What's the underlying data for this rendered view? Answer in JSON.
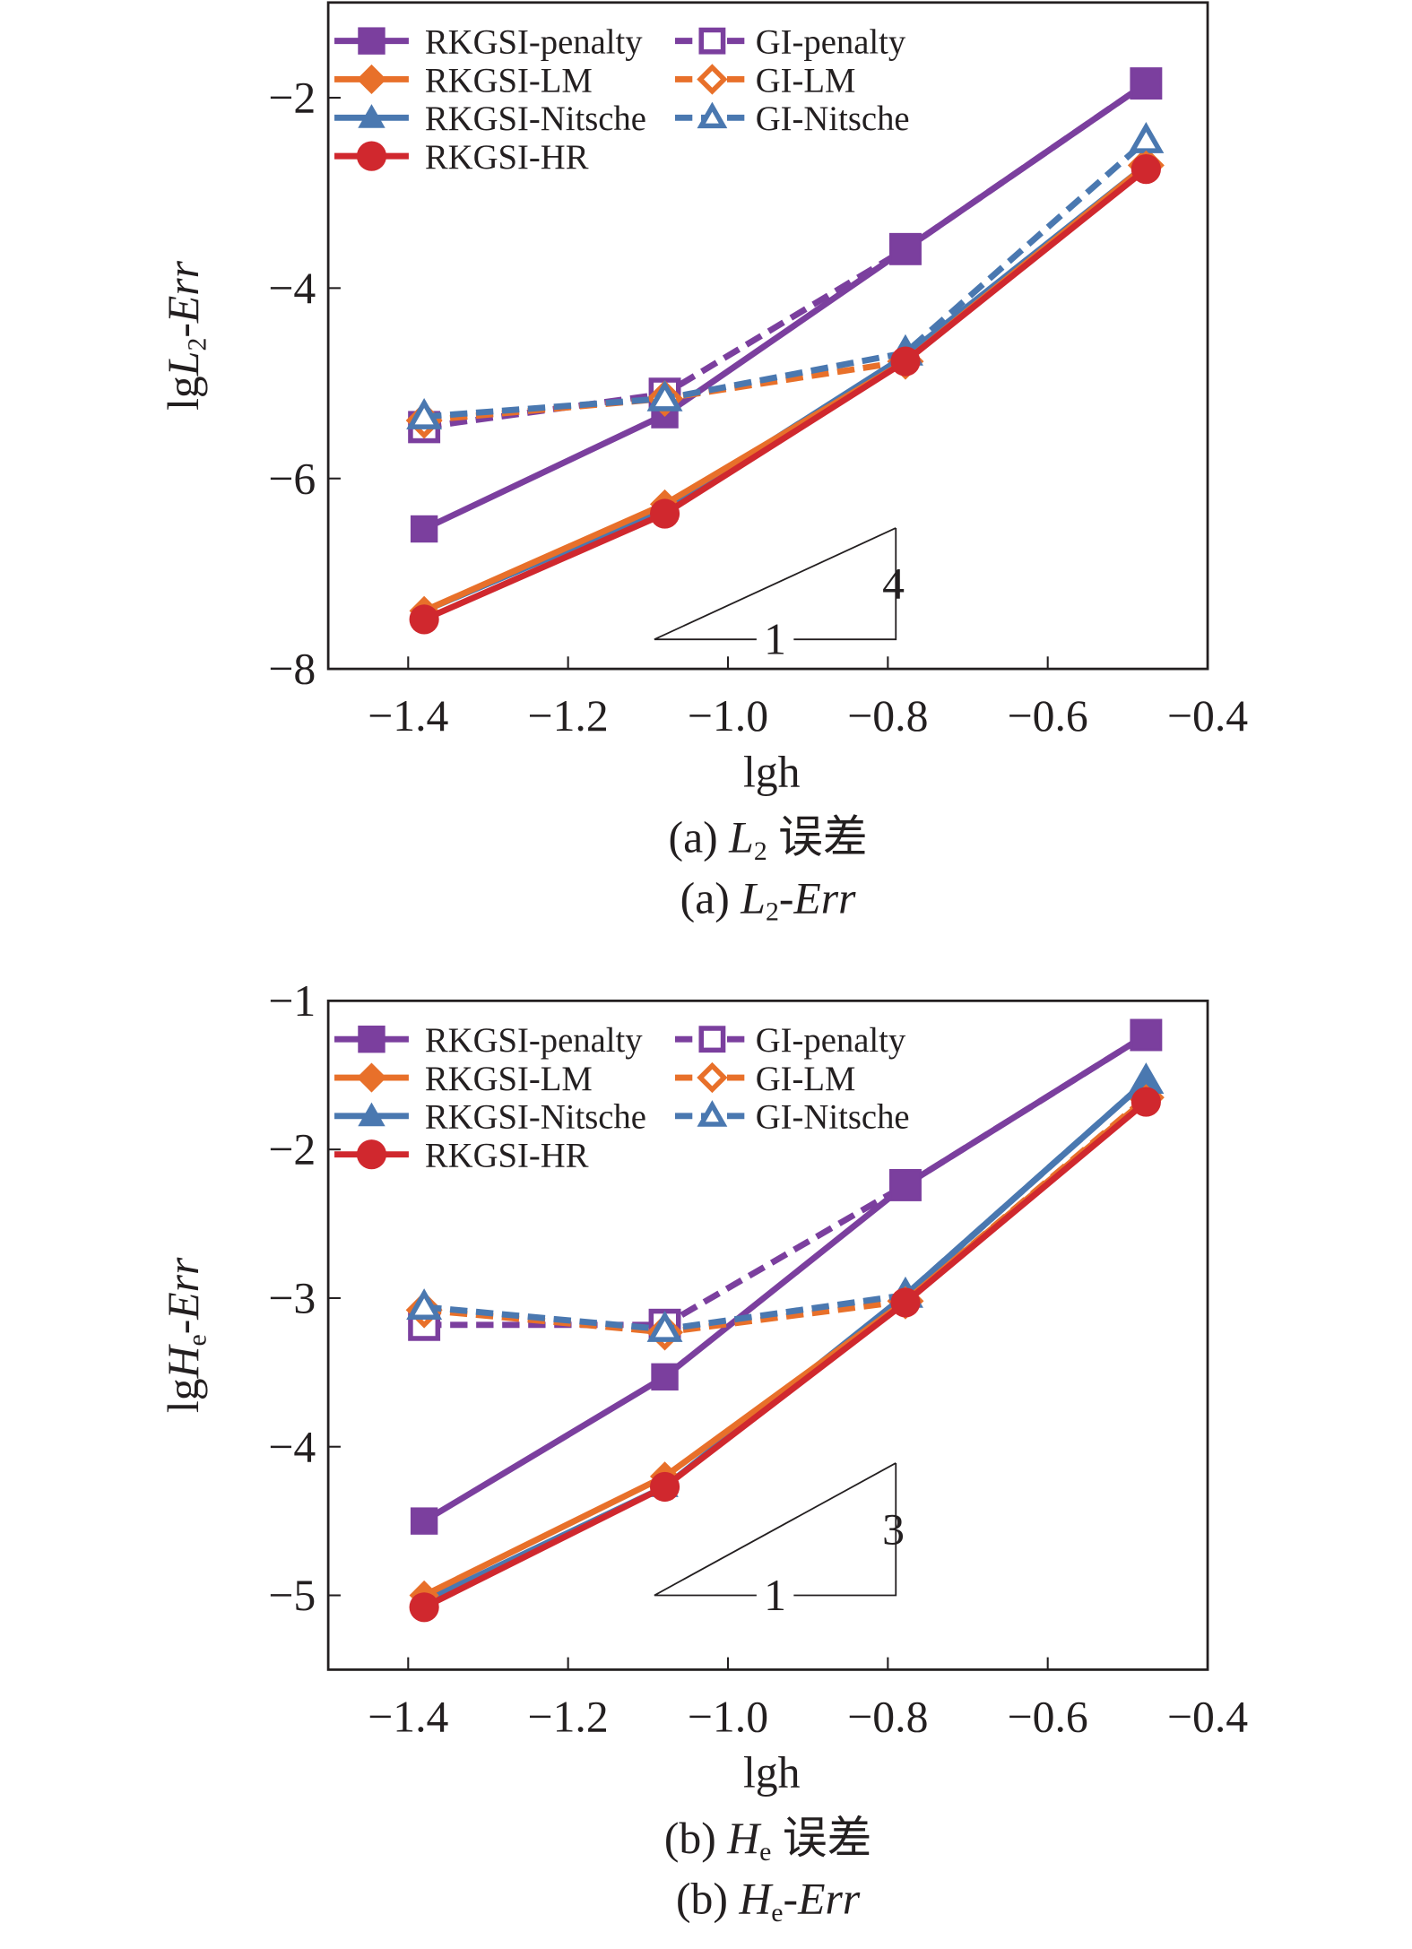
{
  "colors": {
    "penalty": "#7b3f9e",
    "LM": "#e8702a",
    "Nitsche": "#4a78b0",
    "HR": "#d0282e"
  },
  "chart_data": [
    {
      "type": "line",
      "xlabel": "lgh",
      "ylabel": {
        "prefix": "lg",
        "var": "L",
        "sub": "2",
        "suffix": "-Err"
      },
      "caption_cn": {
        "prefix": "(a) ",
        "var": "L",
        "sub": "2",
        "suffix": " 误差"
      },
      "caption_en": {
        "prefix": "(a) ",
        "var": "L",
        "sub": "2",
        "suffix": "-Err"
      },
      "xlim": [
        -1.5,
        -0.4
      ],
      "ylim": [
        -8,
        -1.0
      ],
      "xticks": [
        -1.4,
        -1.2,
        -1.0,
        -0.8,
        -0.6,
        -0.4
      ],
      "xtick_labels": [
        "−1.4",
        "−1.2",
        "−1.0",
        "−0.8",
        "−0.6",
        "−0.4"
      ],
      "yticks": [
        -2,
        -4,
        -6,
        -8
      ],
      "ytick_labels": [
        "−2",
        "−4",
        "−6",
        "−8"
      ],
      "grid": false,
      "legend_position": "top-left",
      "x": [
        -1.38,
        -1.079,
        -0.778,
        -0.477
      ],
      "series": [
        {
          "name": "RKGSI-penalty",
          "color": "#7b3f9e",
          "marker": "square",
          "filled": true,
          "dashed": false,
          "values": [
            -6.53,
            -5.33,
            -3.59,
            -1.85
          ]
        },
        {
          "name": "RKGSI-LM",
          "color": "#e8702a",
          "marker": "diamond",
          "filled": true,
          "dashed": false,
          "values": [
            -7.39,
            -6.27,
            -4.77,
            -2.71
          ]
        },
        {
          "name": "RKGSI-Nitsche",
          "color": "#4a78b0",
          "marker": "triangle",
          "filled": true,
          "dashed": false,
          "values": [
            -7.39,
            -6.32,
            -4.71,
            -2.71
          ]
        },
        {
          "name": "RKGSI-HR",
          "color": "#d0282e",
          "marker": "circle",
          "filled": true,
          "dashed": false,
          "values": [
            -7.48,
            -6.37,
            -4.77,
            -2.75
          ]
        },
        {
          "name": "GI-penalty",
          "color": "#7b3f9e",
          "marker": "square",
          "filled": false,
          "dashed": true,
          "values": [
            -5.46,
            -5.11,
            -3.59,
            -1.85
          ]
        },
        {
          "name": "GI-LM",
          "color": "#e8702a",
          "marker": "diamond",
          "filled": false,
          "dashed": true,
          "values": [
            -5.39,
            -5.16,
            -4.77,
            -2.71
          ]
        },
        {
          "name": "GI-Nitsche",
          "color": "#4a78b0",
          "marker": "triangle",
          "filled": false,
          "dashed": true,
          "values": [
            -5.35,
            -5.16,
            -4.68,
            -2.45
          ]
        }
      ],
      "slope_triangle": {
        "run_label": "1",
        "rise_label": "4",
        "x": [
          -1.092,
          -0.79
        ],
        "y": [
          -7.69,
          -6.52
        ]
      }
    },
    {
      "type": "line",
      "xlabel": "lgh",
      "ylabel": {
        "prefix": "lg",
        "var": "H",
        "sub": "e",
        "suffix": "-Err"
      },
      "caption_cn": {
        "prefix": "(b) ",
        "var": "H",
        "sub": "e",
        "suffix": " 误差"
      },
      "caption_en": {
        "prefix": "(b) ",
        "var": "H",
        "sub": "e",
        "suffix": "-Err"
      },
      "xlim": [
        -1.5,
        -0.4
      ],
      "ylim": [
        -5.5,
        -1.0
      ],
      "xticks": [
        -1.4,
        -1.2,
        -1.0,
        -0.8,
        -0.6,
        -0.4
      ],
      "xtick_labels": [
        "−1.4",
        "−1.2",
        "−1.0",
        "−0.8",
        "−0.6",
        "−0.4"
      ],
      "yticks": [
        -1,
        -2,
        -3,
        -4,
        -5
      ],
      "ytick_labels": [
        "−1",
        "−2",
        "−3",
        "−4",
        "−5"
      ],
      "grid": false,
      "legend_position": "top-left",
      "x": [
        -1.38,
        -1.079,
        -0.778,
        -0.477
      ],
      "series": [
        {
          "name": "RKGSI-penalty",
          "color": "#7b3f9e",
          "marker": "square",
          "filled": true,
          "dashed": false,
          "values": [
            -4.5,
            -3.53,
            -2.24,
            -1.23
          ]
        },
        {
          "name": "RKGSI-LM",
          "color": "#e8702a",
          "marker": "diamond",
          "filled": true,
          "dashed": false,
          "values": [
            -5.0,
            -4.2,
            -3.02,
            -1.66
          ]
        },
        {
          "name": "RKGSI-Nitsche",
          "color": "#4a78b0",
          "marker": "triangle",
          "filled": true,
          "dashed": false,
          "values": [
            -5.04,
            -4.27,
            -2.98,
            -1.54
          ]
        },
        {
          "name": "RKGSI-HR",
          "color": "#d0282e",
          "marker": "circle",
          "filled": true,
          "dashed": false,
          "values": [
            -5.08,
            -4.27,
            -3.03,
            -1.68
          ]
        },
        {
          "name": "GI-penalty",
          "color": "#7b3f9e",
          "marker": "square",
          "filled": false,
          "dashed": true,
          "values": [
            -3.18,
            -3.18,
            -2.24,
            -1.23
          ]
        },
        {
          "name": "GI-LM",
          "color": "#e8702a",
          "marker": "diamond",
          "filled": false,
          "dashed": true,
          "values": [
            -3.08,
            -3.23,
            -3.02,
            -1.65
          ]
        },
        {
          "name": "GI-Nitsche",
          "color": "#4a78b0",
          "marker": "triangle",
          "filled": false,
          "dashed": true,
          "values": [
            -3.06,
            -3.21,
            -2.98,
            -1.54
          ]
        }
      ],
      "slope_triangle": {
        "run_label": "1",
        "rise_label": "3",
        "x": [
          -1.092,
          -0.79
        ],
        "y": [
          -5.0,
          -4.11
        ]
      }
    }
  ]
}
